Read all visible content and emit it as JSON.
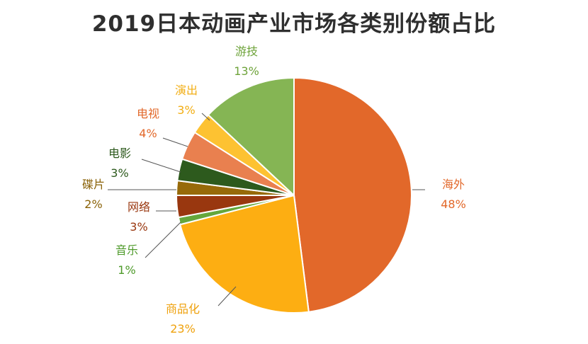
{
  "chart_data": {
    "type": "pie",
    "title": "2019日本动画产业市场各类别份额占比",
    "slices": [
      {
        "label": "海外",
        "value": 48,
        "value_label": "48%",
        "color": "#E2682A"
      },
      {
        "label": "商品化",
        "value": 23,
        "value_label": "23%",
        "color": "#FDAE12"
      },
      {
        "label": "音乐",
        "value": 1,
        "value_label": "1%",
        "color": "#64A73C"
      },
      {
        "label": "网络",
        "value": 3,
        "value_label": "3%",
        "color": "#99370F"
      },
      {
        "label": "碟片",
        "value": 2,
        "value_label": "2%",
        "color": "#976A09"
      },
      {
        "label": "电影",
        "value": 3,
        "value_label": "3%",
        "color": "#2D5A1D"
      },
      {
        "label": "电视",
        "value": 4,
        "value_label": "4%",
        "color": "#E9804F"
      },
      {
        "label": "演出",
        "value": 3,
        "value_label": "3%",
        "color": "#FDC232"
      },
      {
        "label": "游技",
        "value": 13,
        "value_label": "13%",
        "color": "#85B554"
      }
    ],
    "label_colors": {
      "海外": "#E2682A",
      "商品化": "#EFA10C",
      "音乐": "#4E9A2A",
      "网络": "#99370F",
      "碟片": "#8A6208",
      "电影": "#2D5A1D",
      "电视": "#E2682A",
      "演出": "#F2AE14",
      "游技": "#6EA33A"
    }
  }
}
